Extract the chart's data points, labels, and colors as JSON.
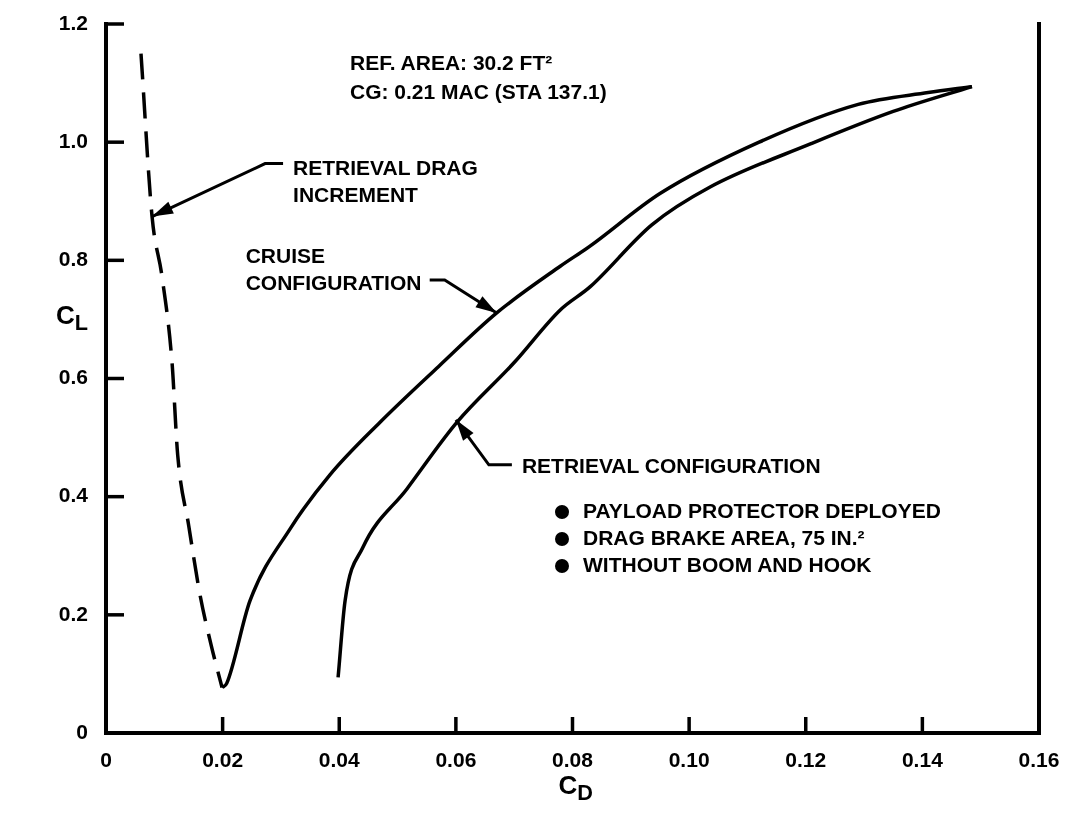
{
  "chart_data": {
    "type": "line",
    "xlabel": "C$_{D}$",
    "ylabel": "C$_{L}$",
    "xlim": [
      0,
      0.16
    ],
    "ylim": [
      0,
      1.2
    ],
    "xticks": [
      0,
      0.02,
      0.04,
      0.06,
      0.08,
      {
        "value": 0.1,
        "label": "0.10"
      },
      0.12,
      0.14,
      0.16
    ],
    "yticks": [
      0,
      0.2,
      0.4,
      0.6,
      0.8,
      {
        "value": 1,
        "label": "1.0"
      },
      1.2
    ],
    "series": [
      {
        "color": "#000000",
        "line_style": "dashed",
        "x": [
          0.006,
          0.0079,
          0.0096,
          0.0113,
          0.0123,
          0.0142,
          0.0161,
          0.018,
          0.0199
        ],
        "values": [
          1.15,
          0.874,
          0.773,
          0.63,
          0.47,
          0.35,
          0.235,
          0.15,
          0.077
        ]
      },
      {
        "color": "#000000",
        "line_style": "solid",
        "x": [
          0.0199,
          0.0207,
          0.0247,
          0.0316,
          0.0384,
          0.047,
          0.057,
          0.067,
          0.0779,
          0.083,
          0.095,
          0.112,
          0.129,
          0.141,
          0.1485
        ],
        "values": [
          0.077,
          0.084,
          0.224,
          0.346,
          0.437,
          0.526,
          0.62,
          0.711,
          0.79,
          0.824,
          0.913,
          1.0,
          1.064,
          1.084,
          1.094
        ]
      },
      {
        "color": "#000000",
        "line_style": "solid",
        "x": [
          0.0398,
          0.041,
          0.044,
          0.0516,
          0.0602,
          0.07,
          0.0779,
          0.083,
          0.0936,
          0.1036,
          0.1208,
          0.135,
          0.1485
        ],
        "values": [
          0.094,
          0.224,
          0.313,
          0.413,
          0.526,
          0.627,
          0.716,
          0.755,
          0.86,
          0.924,
          0.997,
          1.052,
          1.094
        ]
      }
    ],
    "annotations": [
      "REF. AREA: 30.2 FT²",
      "CG: 0.21 MAC (STA 137.1)",
      {
        "text": "RETRIEVAL DRAG INCREMENT",
        "x": 0.0079,
        "y": 0.874
      },
      {
        "text": "CRUISE CONFIGURATION",
        "x": 0.067,
        "y": 0.711
      },
      {
        "text": "RETRIEVAL CONFIGURATION",
        "x": 0.06,
        "y": 0.53
      },
      "PAYLOAD PROTECTOR DEPLOYED",
      "DRAG BRAKE AREA, 75 IN.²",
      "WITHOUT BOOM AND HOOK"
    ]
  }
}
